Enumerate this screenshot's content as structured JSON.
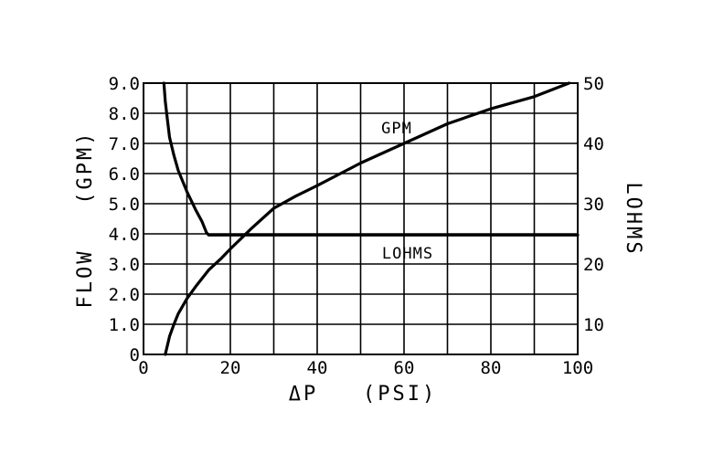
{
  "chart_data": {
    "type": "line",
    "xlabel": "ΔP   (PSI)",
    "ylabel": "FLOW   (GPM)",
    "y2label": "LOHMS",
    "xlim": [
      0,
      100
    ],
    "ylim": [
      0,
      9
    ],
    "y2lim": [
      5,
      50
    ],
    "grid": true,
    "x_ticks": [
      "0",
      "20",
      "40",
      "60",
      "80",
      "100"
    ],
    "y_ticks": [
      "0",
      "1.0",
      "2.0",
      "3.0",
      "4.0",
      "5.0",
      "6.0",
      "7.0",
      "8.0",
      "9.0"
    ],
    "y2_ticks": [
      "10",
      "20",
      "30",
      "40",
      "50"
    ],
    "x_grid_step": 10,
    "y_grid_step": 1,
    "series": [
      {
        "name": "GPM",
        "axis": "left",
        "x": [
          5,
          6,
          7,
          8,
          10,
          12,
          15,
          18,
          20,
          25,
          30,
          35,
          40,
          50,
          60,
          70,
          80,
          90,
          98
        ],
        "values": [
          0,
          0.6,
          1.0,
          1.35,
          1.85,
          2.25,
          2.8,
          3.2,
          3.5,
          4.2,
          4.85,
          5.25,
          5.6,
          6.35,
          7.0,
          7.65,
          8.15,
          8.55,
          9.0
        ]
      },
      {
        "name": "LOHMS",
        "axis": "right",
        "x": [
          4.7,
          5.0,
          5.5,
          6.0,
          7.0,
          8.0,
          10.0,
          12.0,
          13.5,
          14.5,
          15,
          20,
          40,
          60,
          80,
          100
        ],
        "values": [
          50,
          47,
          44,
          41,
          38,
          35.5,
          32,
          29,
          27,
          25.2,
          24.8,
          24.8,
          24.8,
          24.8,
          24.8,
          24.8
        ]
      }
    ]
  }
}
